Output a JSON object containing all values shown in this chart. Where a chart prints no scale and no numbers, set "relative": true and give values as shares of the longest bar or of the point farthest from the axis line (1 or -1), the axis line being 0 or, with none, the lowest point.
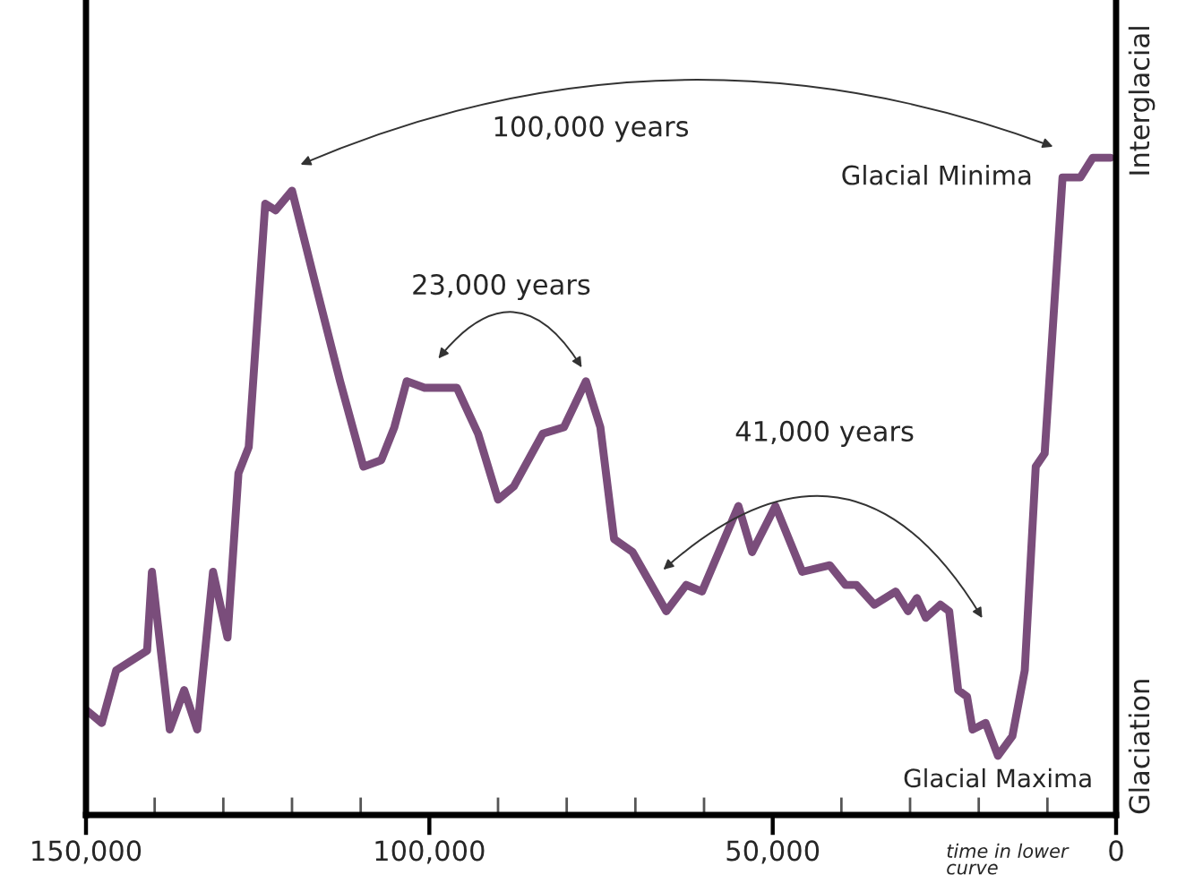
{
  "chart_data": {
    "type": "line",
    "relative": true,
    "x": [
      150000,
      147700,
      145600,
      141100,
      140400,
      137800,
      135700,
      133800,
      131500,
      129400,
      127800,
      126300,
      123900,
      122400,
      120000,
      116400,
      113000,
      109600,
      107000,
      105100,
      103300,
      100700,
      96000,
      92900,
      90000,
      87700,
      83500,
      80400,
      77200,
      75100,
      73100,
      70400,
      65500,
      62600,
      60300,
      55000,
      53000,
      49600,
      45700,
      41700,
      39400,
      37800,
      35200,
      32100,
      30300,
      29000,
      27700,
      25600,
      24300,
      23000,
      21700,
      20900,
      19000,
      17200,
      15100,
      13300,
      11700,
      10400,
      7800,
      5200,
      3400,
      800
    ],
    "series": [
      {
        "color": "#7a4d7b",
        "values": [
          0.16,
          0.14,
          0.22,
          0.25,
          0.37,
          0.13,
          0.19,
          0.13,
          0.37,
          0.27,
          0.52,
          0.56,
          0.93,
          0.92,
          0.95,
          0.8,
          0.66,
          0.53,
          0.54,
          0.59,
          0.66,
          0.65,
          0.65,
          0.58,
          0.48,
          0.5,
          0.58,
          0.59,
          0.66,
          0.59,
          0.42,
          0.4,
          0.31,
          0.35,
          0.34,
          0.47,
          0.4,
          0.47,
          0.37,
          0.38,
          0.35,
          0.35,
          0.32,
          0.34,
          0.31,
          0.33,
          0.3,
          0.32,
          0.31,
          0.19,
          0.18,
          0.13,
          0.14,
          0.09,
          0.12,
          0.22,
          0.53,
          0.55,
          0.97,
          0.97,
          1.0,
          1.0
        ]
      }
    ],
    "xlim": [
      150000,
      0
    ],
    "xticks": [
      {
        "value": 150000,
        "label": "150,000"
      },
      {
        "value": 140000,
        "label": null
      },
      {
        "value": 130000,
        "label": null
      },
      {
        "value": 120000,
        "label": null
      },
      {
        "value": 110000,
        "label": null
      },
      {
        "value": 100000,
        "label": "100,000"
      },
      {
        "value": 90000,
        "label": null
      },
      {
        "value": 80000,
        "label": null
      },
      {
        "value": 70000,
        "label": null
      },
      {
        "value": 60000,
        "label": null
      },
      {
        "value": 50000,
        "label": "50,000"
      },
      {
        "value": 40000,
        "label": null
      },
      {
        "value": 30000,
        "label": null
      },
      {
        "value": 20000,
        "label": null
      },
      {
        "value": 10000,
        "label": null
      },
      {
        "value": 0,
        "label": "0"
      }
    ],
    "annotations": [
      "100,000 years",
      "23,000 years",
      "41,000 years",
      {
        "text": "Glacial Minima",
        "x": 7800,
        "y": 0.97
      },
      {
        "text": "Glacial Maxima",
        "x": 17200,
        "y": 0.09
      },
      "Interglacial",
      "Glaciation",
      "time in lower\ncurve"
    ],
    "grid": false,
    "legend": false
  }
}
